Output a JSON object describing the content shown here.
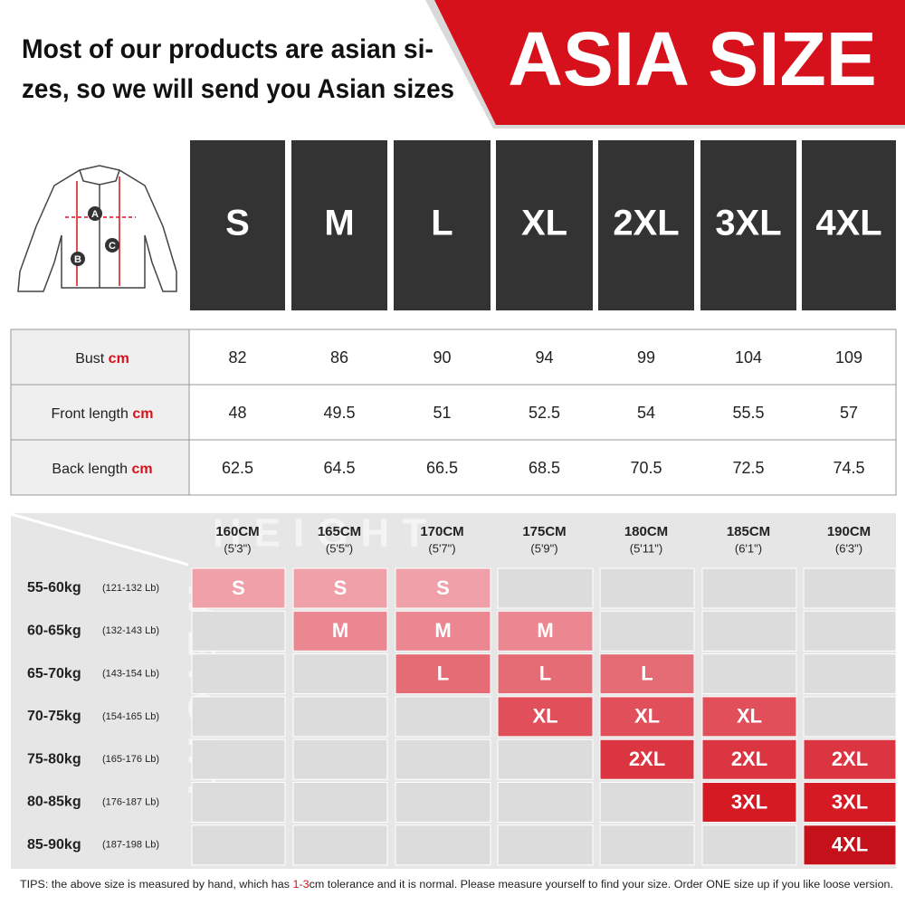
{
  "header": {
    "notice_lines": [
      "Most of our products are asian si-",
      "zes, so we will send you Asian sizes"
    ],
    "title": "ASIA SIZE"
  },
  "diagram": {
    "labels": [
      "A",
      "B",
      "C"
    ]
  },
  "sizes": [
    "S",
    "M",
    "L",
    "XL",
    "2XL",
    "3XL",
    "4XL"
  ],
  "measurements": [
    {
      "label": "Bust",
      "unit": "cm",
      "values": [
        82,
        86,
        90,
        94,
        99,
        104,
        109
      ]
    },
    {
      "label": "Front length",
      "unit": "cm",
      "values": [
        48,
        49.5,
        51,
        52.5,
        54,
        55.5,
        57
      ]
    },
    {
      "label": "Back length",
      "unit": "cm",
      "values": [
        62.5,
        64.5,
        66.5,
        68.5,
        70.5,
        72.5,
        74.5
      ]
    }
  ],
  "fit_chart": {
    "watermark_x": "HEIGHT",
    "watermark_y": "WEIGHT",
    "heights": [
      {
        "cm": "160CM",
        "ft": "(5'3\")"
      },
      {
        "cm": "165CM",
        "ft": "(5'5\")"
      },
      {
        "cm": "170CM",
        "ft": "(5'7\")"
      },
      {
        "cm": "175CM",
        "ft": "(5'9\")"
      },
      {
        "cm": "180CM",
        "ft": "(5'11\")"
      },
      {
        "cm": "185CM",
        "ft": "(6'1\")"
      },
      {
        "cm": "190CM",
        "ft": "(6'3\")"
      }
    ],
    "weights": [
      {
        "kg": "55-60kg",
        "lb": "(121-132 Lb)"
      },
      {
        "kg": "60-65kg",
        "lb": "(132-143 Lb)"
      },
      {
        "kg": "65-70kg",
        "lb": "(143-154 Lb)"
      },
      {
        "kg": "70-75kg",
        "lb": "(154-165 Lb)"
      },
      {
        "kg": "75-80kg",
        "lb": "(165-176 Lb)"
      },
      {
        "kg": "80-85kg",
        "lb": "(176-187 Lb)"
      },
      {
        "kg": "85-90kg",
        "lb": "(187-198 Lb)"
      }
    ],
    "grid": [
      [
        "S",
        "S",
        "S",
        null,
        null,
        null,
        null
      ],
      [
        null,
        "M",
        "M",
        "M",
        null,
        null,
        null
      ],
      [
        null,
        null,
        "L",
        "L",
        "L",
        null,
        null
      ],
      [
        null,
        null,
        null,
        "XL",
        "XL",
        "XL",
        null
      ],
      [
        null,
        null,
        null,
        null,
        "2XL",
        "2XL",
        "2XL"
      ],
      [
        null,
        null,
        null,
        null,
        null,
        "3XL",
        "3XL"
      ],
      [
        null,
        null,
        null,
        null,
        null,
        null,
        "4XL"
      ]
    ]
  },
  "tips": {
    "prefix": "TIPS:  the above size is measured by hand, which has ",
    "highlight": "1-3",
    "suffix": "cm tolerance and it is normal. Please measure yourself to find your size. Order ONE size up if you like loose version."
  }
}
